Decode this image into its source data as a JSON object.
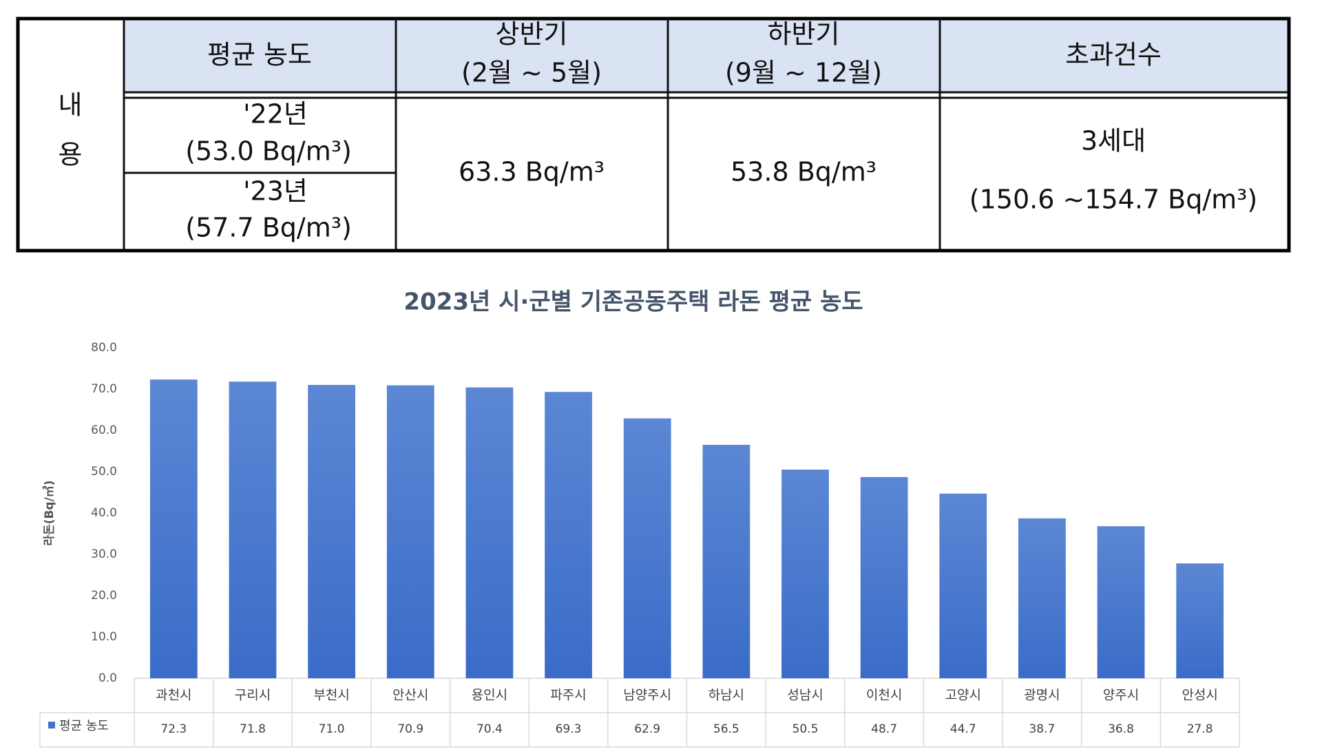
{
  "table": {
    "side_label": [
      "내",
      "용"
    ],
    "header": {
      "avg": "평균 농도",
      "first_half": [
        "상반기",
        "(2월 ~ 5월)"
      ],
      "second_half": [
        "하반기",
        "(9월 ~ 12월)"
      ],
      "exceed": "초과건수"
    },
    "rows": {
      "y22": [
        "'22년",
        "(53.0 Bq/m³)"
      ],
      "y23": [
        "'23년",
        "(57.7 Bq/m³)"
      ],
      "first_half": "63.3 Bq/m³",
      "second_half": "53.8 Bq/m³",
      "exceed": [
        "3세대",
        "(150.6 ~154.7 Bq/m³)"
      ]
    }
  },
  "chart_data": {
    "type": "bar",
    "title": "2023년 시·군별 기존공동주택 라돈 평균 농도",
    "y_label": "라돈(Bq/㎥)",
    "categories": [
      "과천시",
      "구리시",
      "부천시",
      "안산시",
      "용인시",
      "파주시",
      "남양주시",
      "하남시",
      "성남시",
      "이천시",
      "고양시",
      "광명시",
      "양주시",
      "안성시"
    ],
    "series": [
      {
        "name": "평균 농도",
        "color": "#4472c4",
        "values": [
          72.3,
          71.8,
          71.0,
          70.9,
          70.4,
          69.3,
          62.9,
          56.5,
          50.5,
          48.7,
          44.7,
          38.7,
          36.8,
          27.8
        ],
        "value_labels": [
          "72.3",
          "71.8",
          "71.0",
          "70.9",
          "70.4",
          "69.3",
          "62.9",
          "56.5",
          "50.5",
          "48.7",
          "44.7",
          "38.7",
          "36.8",
          "27.8"
        ]
      }
    ],
    "ylim": [
      0,
      80
    ],
    "yticks": [
      {
        "value": 0,
        "label": "0.0"
      },
      {
        "value": 10,
        "label": "10.0"
      },
      {
        "value": 20,
        "label": "20.0"
      },
      {
        "value": 30,
        "label": "30.0"
      },
      {
        "value": 40,
        "label": "40.0"
      },
      {
        "value": 50,
        "label": "50.0"
      },
      {
        "value": 60,
        "label": "60.0"
      },
      {
        "value": 70,
        "label": "70.0"
      },
      {
        "value": 80,
        "label": "80.0"
      }
    ],
    "grid": false
  }
}
